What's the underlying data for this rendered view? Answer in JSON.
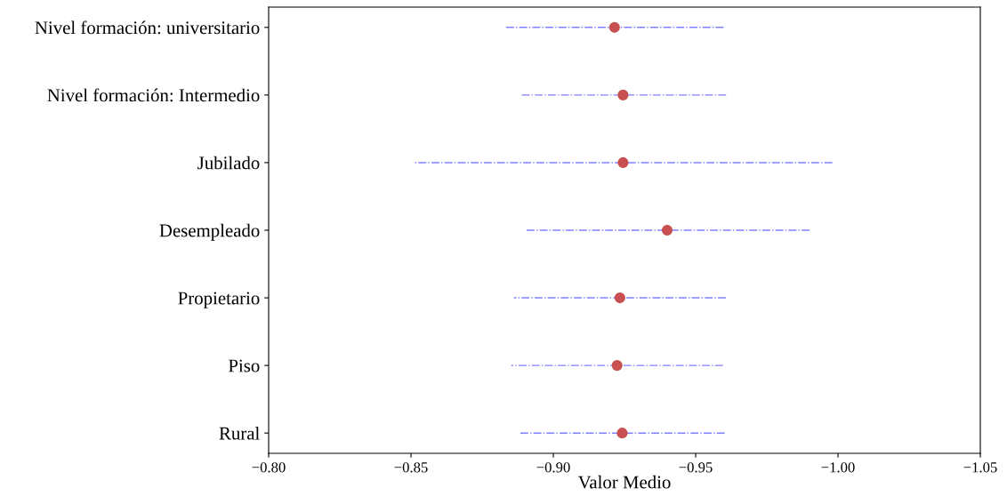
{
  "chart_data": {
    "type": "scatter",
    "orientation": "horizontal",
    "xlabel": "Valor Medio",
    "categories": [
      "Nivel formación: universitario",
      "Nivel formación: Intermedio",
      "Jubilado",
      "Desempleado",
      "Propietario",
      "Piso",
      "Rural"
    ],
    "values": [
      -0.9215,
      -0.9245,
      -0.9245,
      -0.94,
      -0.9234,
      -0.9224,
      -0.9242
    ],
    "errors": [
      0.0383,
      0.0362,
      0.0735,
      0.05,
      0.0372,
      0.0372,
      0.036
    ],
    "color": "#8080ff",
    "colors": [
      "#c85050",
      "#c85050",
      "#c85050",
      "#c85050",
      "#c85050",
      "#c85050",
      "#c85050"
    ],
    "xlim": [
      -0.8,
      -1.05
    ],
    "xticks": [
      {
        "value": -0.8,
        "label": "−0.80"
      },
      {
        "value": -0.85,
        "label": "−0.85"
      },
      {
        "value": -0.9,
        "label": "−0.90"
      },
      {
        "value": -0.95,
        "label": "−0.95"
      },
      {
        "value": -1.0,
        "label": "−1.00"
      },
      {
        "value": -1.05,
        "label": "−1.05"
      }
    ],
    "marker": "circle",
    "line_style": "dashdot",
    "grid": false,
    "legend": false
  }
}
